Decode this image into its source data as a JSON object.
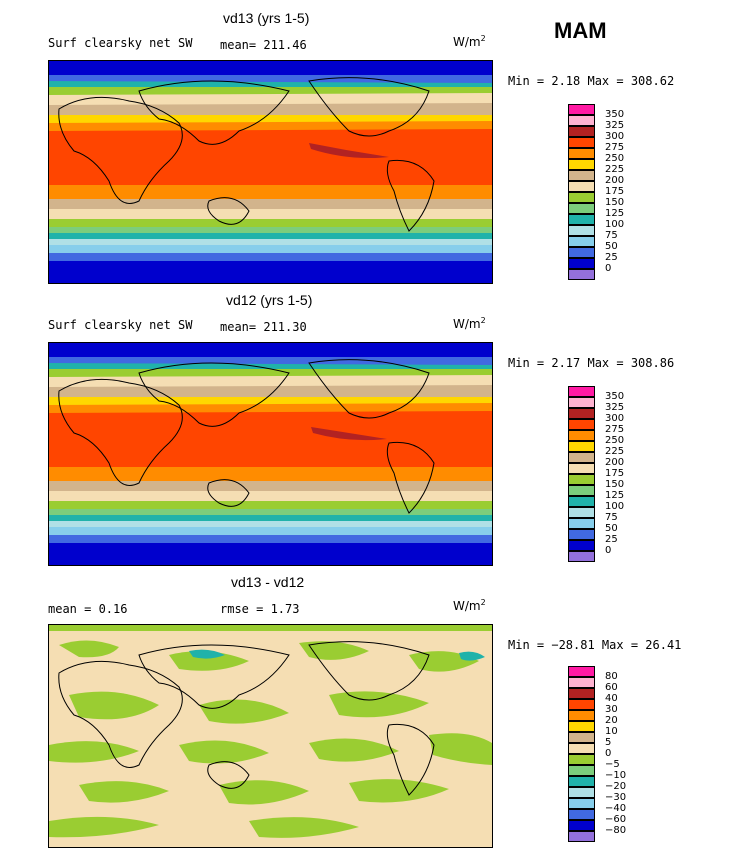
{
  "season": "MAM",
  "panels": [
    {
      "title": "vd13 (yrs 1-5)",
      "left_text": "Surf clearsky net SW",
      "center_text": "mean= 211.46",
      "units": "W/m",
      "units_sup": "2",
      "stats": "Min =    2.18 Max = 308.62",
      "colorbar_labels": [
        "350",
        "325",
        "300",
        "275",
        "250",
        "225",
        "200",
        "175",
        "150",
        "125",
        "100",
        "75",
        "50",
        "25",
        "0"
      ]
    },
    {
      "title": "vd12 (yrs 1-5)",
      "left_text": "Surf clearsky net SW",
      "center_text": "mean= 211.30",
      "units": "W/m",
      "units_sup": "2",
      "stats": "Min =    2.17 Max = 308.86",
      "colorbar_labels": [
        "350",
        "325",
        "300",
        "275",
        "250",
        "225",
        "200",
        "175",
        "150",
        "125",
        "100",
        "75",
        "50",
        "25",
        "0"
      ]
    },
    {
      "title": "vd13 - vd12",
      "left_text": "mean =    0.16",
      "center_text": "rmse =    1.73",
      "units": "W/m",
      "units_sup": "2",
      "stats": "Min = −28.81 Max =  26.41",
      "colorbar_labels": [
        "80",
        "60",
        "40",
        "30",
        "20",
        "10",
        "5",
        "0",
        "−5",
        "−10",
        "−20",
        "−30",
        "−40",
        "−60",
        "−80"
      ]
    }
  ],
  "colors": {
    "scale": [
      "#ff1aa3",
      "#ffb3d1",
      "#b22222",
      "#ff4500",
      "#ff8c00",
      "#ffd700",
      "#d2b48c",
      "#f5deb3",
      "#9acd32",
      "#7ccd7c",
      "#20b2aa",
      "#b0e0e6",
      "#87ceeb",
      "#4169e1",
      "#0000cd",
      "#9370db"
    ]
  }
}
